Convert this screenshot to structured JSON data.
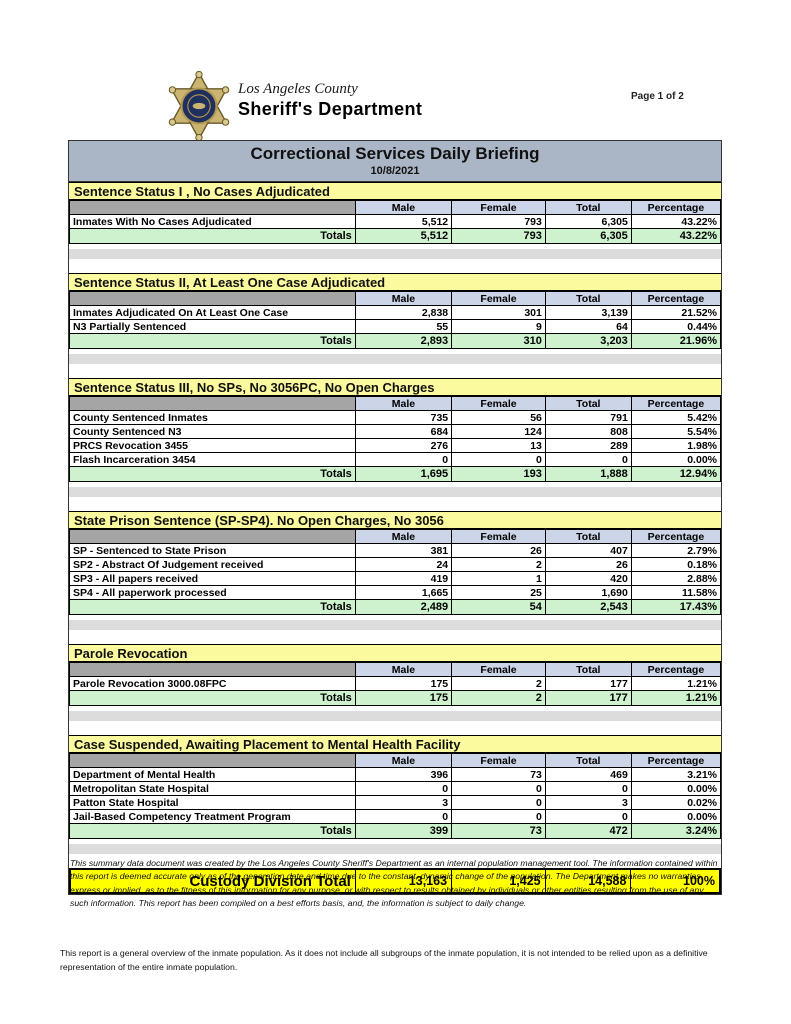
{
  "header": {
    "brand_line1": "Los Angeles County",
    "brand_line2": "Sheriff's Department",
    "page_label": "Page 1 of 2"
  },
  "report": {
    "title": "Correctional Services Daily Briefing",
    "date": "10/8/2021"
  },
  "columns": [
    "Male",
    "Female",
    "Total",
    "Percentage"
  ],
  "totals_label": "Totals",
  "sections": [
    {
      "title": "Sentence Status I , No Cases Adjudicated",
      "rows": [
        {
          "label": "Inmates With No Cases Adjudicated",
          "values": [
            "5,512",
            "793",
            "6,305",
            "43.22%"
          ]
        }
      ],
      "totals": [
        "5,512",
        "793",
        "6,305",
        "43.22%"
      ]
    },
    {
      "title": "Sentence Status II, At Least One Case Adjudicated",
      "rows": [
        {
          "label": "Inmates Adjudicated On At Least One Case",
          "values": [
            "2,838",
            "301",
            "3,139",
            "21.52%"
          ]
        },
        {
          "label": "N3 Partially Sentenced",
          "values": [
            "55",
            "9",
            "64",
            "0.44%"
          ]
        }
      ],
      "totals": [
        "2,893",
        "310",
        "3,203",
        "21.96%"
      ]
    },
    {
      "title": "Sentence Status III, No SPs, No 3056PC, No Open Charges",
      "rows": [
        {
          "label": "County Sentenced Inmates",
          "values": [
            "735",
            "56",
            "791",
            "5.42%"
          ]
        },
        {
          "label": "County Sentenced N3",
          "values": [
            "684",
            "124",
            "808",
            "5.54%"
          ]
        },
        {
          "label": "PRCS Revocation 3455",
          "values": [
            "276",
            "13",
            "289",
            "1.98%"
          ]
        },
        {
          "label": "Flash Incarceration 3454",
          "values": [
            "0",
            "0",
            "0",
            "0.00%"
          ]
        }
      ],
      "totals": [
        "1,695",
        "193",
        "1,888",
        "12.94%"
      ]
    },
    {
      "title": "State Prison Sentence (SP-SP4). No Open Charges, No 3056",
      "rows": [
        {
          "label": "SP - Sentenced to State Prison",
          "values": [
            "381",
            "26",
            "407",
            "2.79%"
          ]
        },
        {
          "label": "SP2 - Abstract Of Judgement received",
          "values": [
            "24",
            "2",
            "26",
            "0.18%"
          ]
        },
        {
          "label": "SP3 - All papers received",
          "values": [
            "419",
            "1",
            "420",
            "2.88%"
          ]
        },
        {
          "label": "SP4 - All paperwork processed",
          "values": [
            "1,665",
            "25",
            "1,690",
            "11.58%"
          ]
        }
      ],
      "totals": [
        "2,489",
        "54",
        "2,543",
        "17.43%"
      ]
    },
    {
      "title": "Parole Revocation",
      "rows": [
        {
          "label": "Parole Revocation 3000.08FPC",
          "values": [
            "175",
            "2",
            "177",
            "1.21%"
          ]
        }
      ],
      "totals": [
        "175",
        "2",
        "177",
        "1.21%"
      ]
    },
    {
      "title": "Case Suspended, Awaiting Placement to Mental Health Facility",
      "rows": [
        {
          "label": "Department of Mental Health",
          "values": [
            "396",
            "73",
            "469",
            "3.21%"
          ]
        },
        {
          "label": "Metropolitan State Hospital",
          "values": [
            "0",
            "0",
            "0",
            "0.00%"
          ]
        },
        {
          "label": "Patton State Hospital",
          "values": [
            "3",
            "0",
            "3",
            "0.02%"
          ]
        },
        {
          "label": "Jail-Based Competency Treatment Program",
          "values": [
            "0",
            "0",
            "0",
            "0.00%"
          ]
        }
      ],
      "totals": [
        "399",
        "73",
        "472",
        "3.24%"
      ]
    }
  ],
  "custody_total": {
    "label": "Custody Division Total",
    "values": [
      "13,163",
      "1,425",
      "14,588",
      "100%"
    ]
  },
  "footnotes": {
    "disclaimer": "This summary data document was created by the Los Angeles County Sheriff's Department as an internal population management tool.  The information contained within this report is deemed accurate only as of the generation date and time due to the constant, dynamic change of the population.  The Department makes no warranties, express or implied, as to the fitness of this information for any purpose, or with respect to results obtained by individuals or other entities resulting from the use of any such information.  This report has been compiled on a best efforts basis, and, the information is subject to daily change.",
    "overview": "This report is a general overview of the inmate population.  As it does not include all subgroups of the inmate population, it is not intended to be relied upon as a definitive representation of the entire inmate population."
  },
  "colors": {
    "title_band_bg": "#aab5c6",
    "section_header_bg": "#fbfa9e",
    "column_header_bg": "#ccd4e8",
    "corner_cell_bg": "#a5a5a5",
    "totals_bg": "#cdf2cd",
    "custody_total_bg": "#ffff00",
    "gap_bg": "#dcdcdc"
  }
}
